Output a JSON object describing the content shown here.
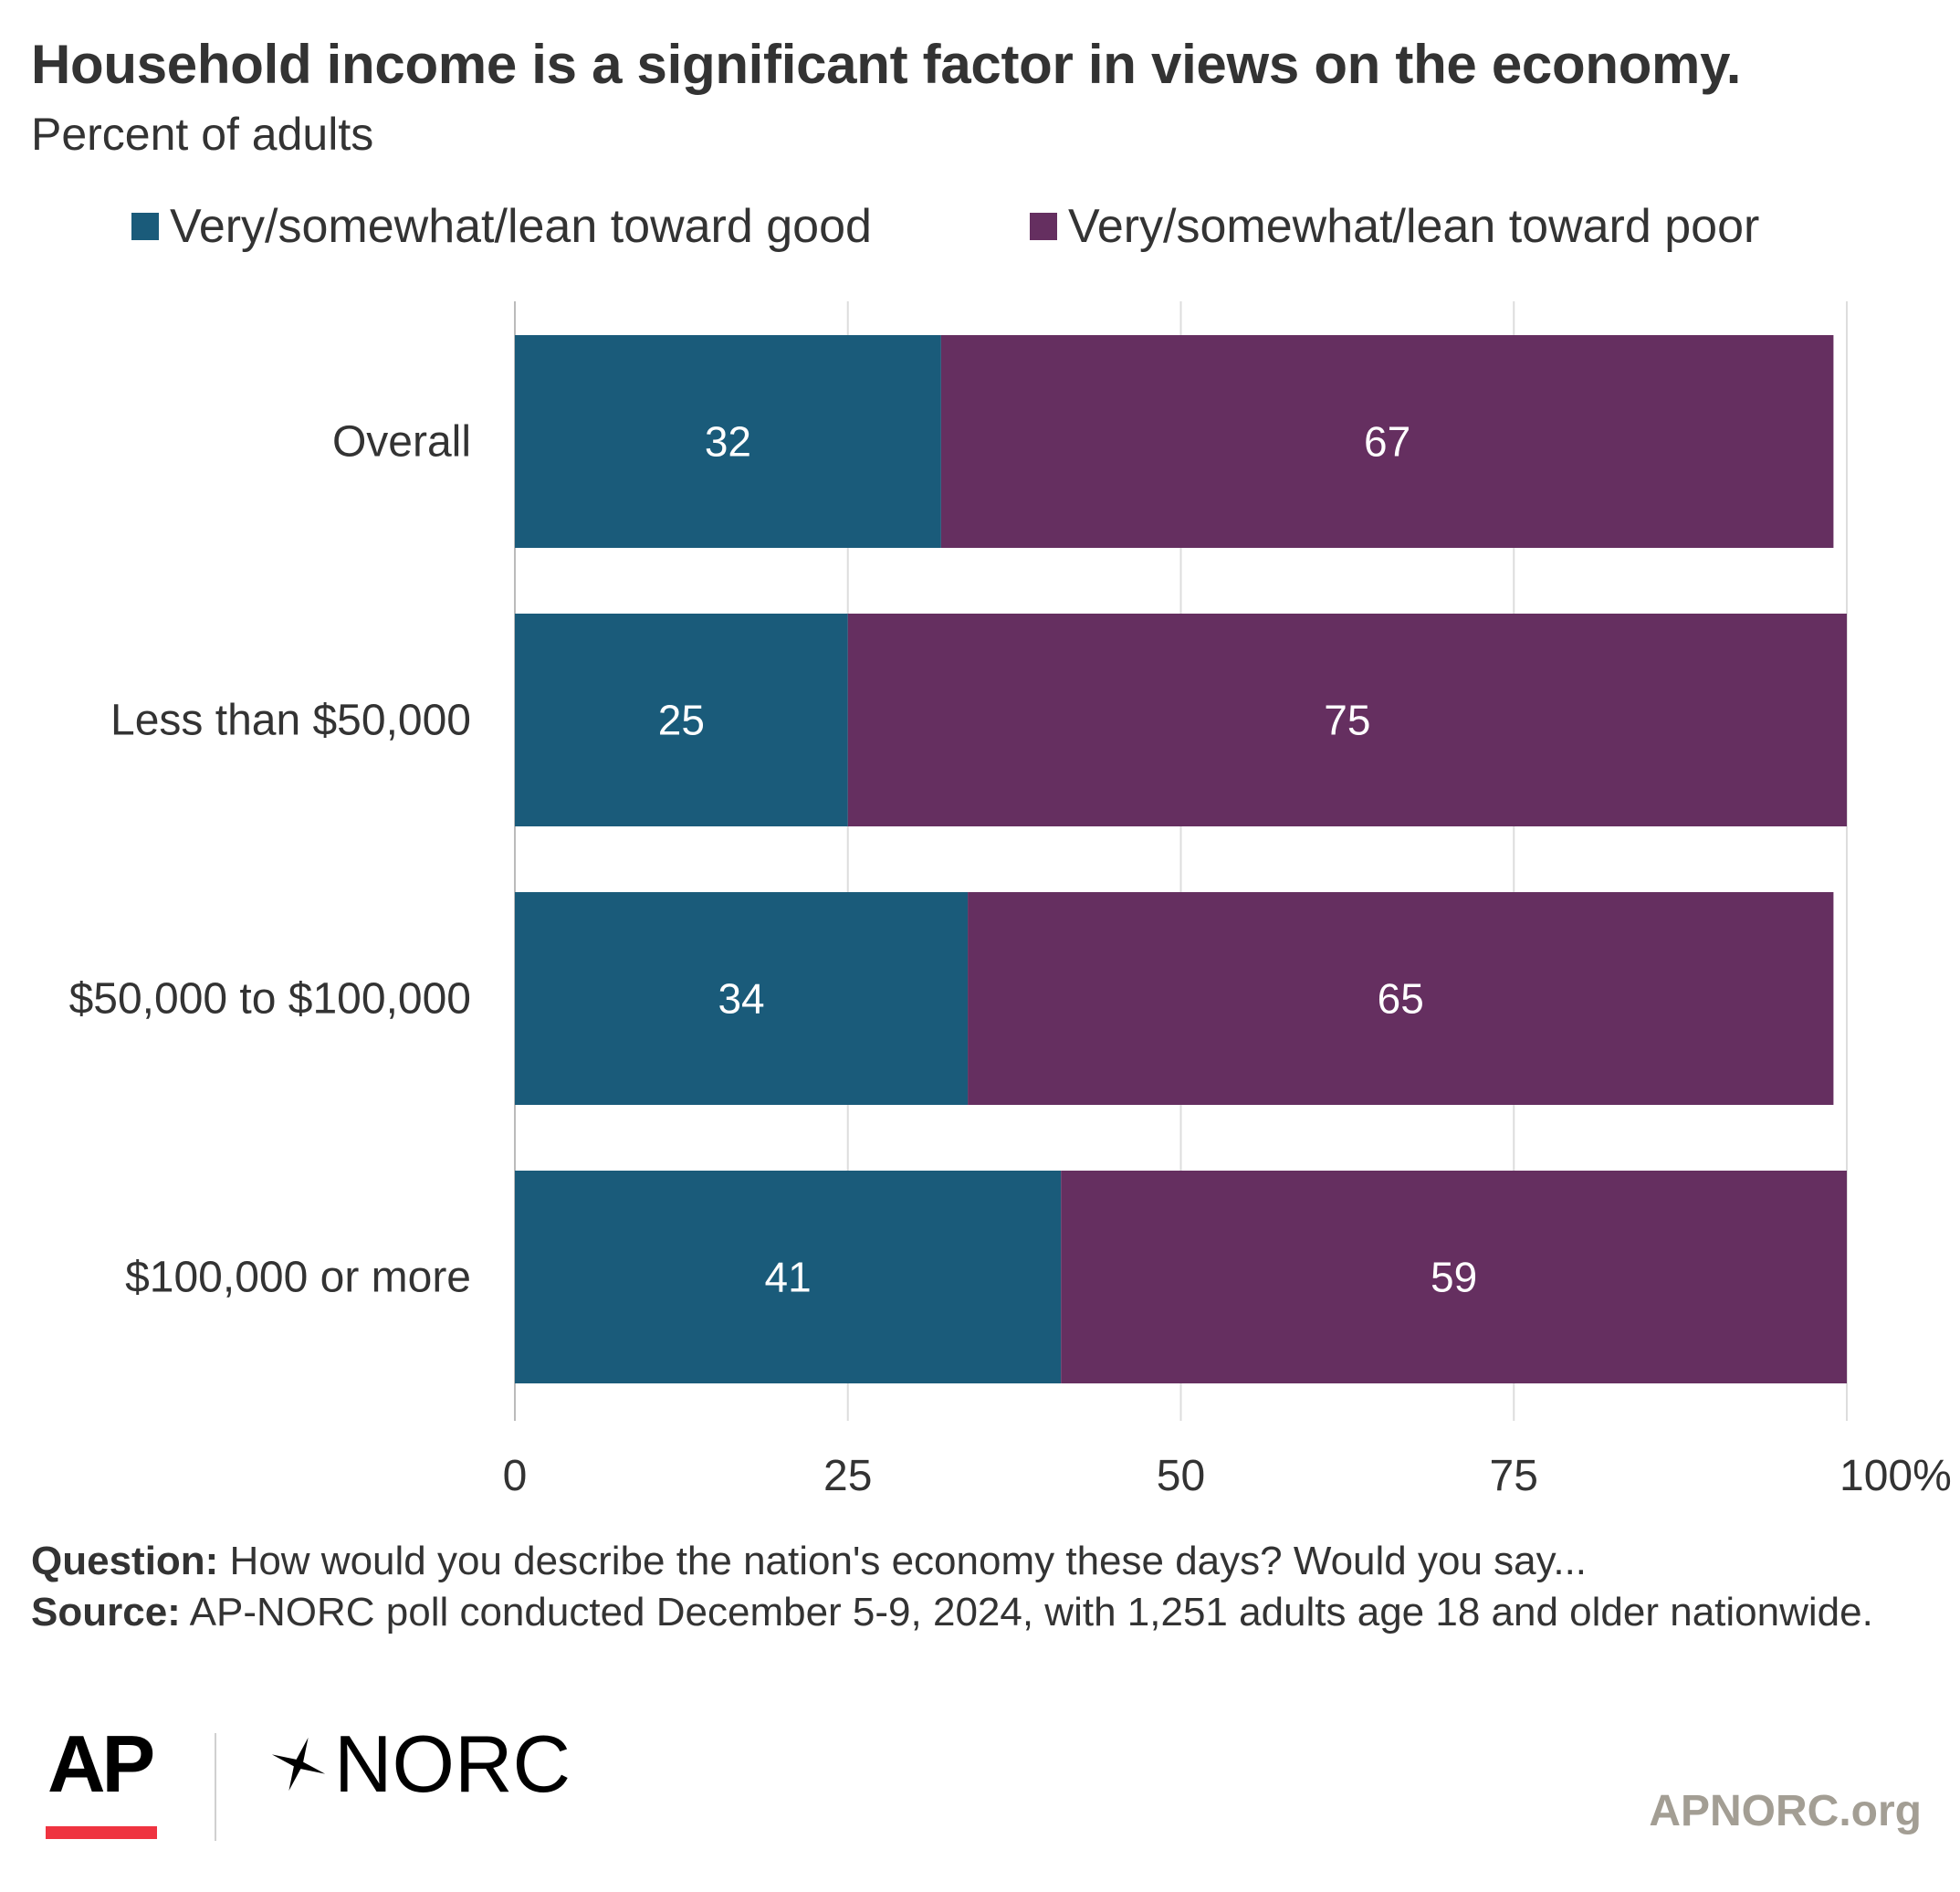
{
  "chart_data": {
    "type": "bar",
    "orientation": "horizontal",
    "stacked": true,
    "title": "Household income is a significant factor in views on the economy.",
    "subtitle": "Percent of adults",
    "categories": [
      "Overall",
      "Less than $50,000",
      "$50,000 to $100,000",
      "$100,000 or more"
    ],
    "series": [
      {
        "name": "Very/somewhat/lean toward good",
        "values": [
          32,
          25,
          34,
          41
        ],
        "color": "#1a5b7a"
      },
      {
        "name": "Very/somewhat/lean toward poor",
        "values": [
          67,
          75,
          65,
          59
        ],
        "color": "#652f60"
      }
    ],
    "xlim": [
      0,
      100
    ],
    "xticks": [
      "0",
      "25",
      "50",
      "75",
      "100%"
    ],
    "xtick_values": [
      0,
      25,
      50,
      75,
      100
    ],
    "grid": true,
    "legend_position": "top"
  },
  "footer": {
    "question_label": "Question:",
    "question_text": " How would you describe the nation's economy these days? Would you say...",
    "source_label": "Source:",
    "source_text": " AP-NORC poll conducted December 5-9, 2024, with 1,251 adults age 18 and older nationwide."
  },
  "logos": {
    "ap": "AP",
    "norc": "NORC"
  },
  "site": "APNORC.org",
  "colors": {
    "good": "#1a5b7a",
    "poor": "#652f60",
    "grid": "#dddddd",
    "ap_red": "#ef3340",
    "site": "#a39e94"
  }
}
